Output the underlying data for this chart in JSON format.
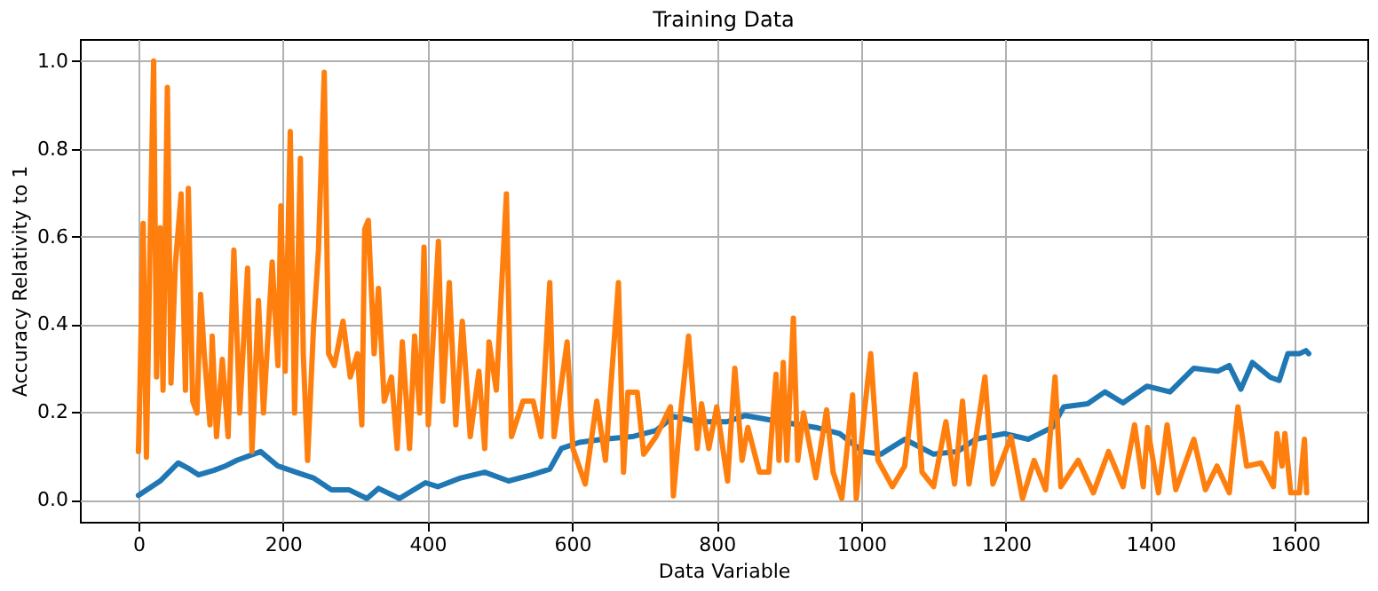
{
  "chart_data": {
    "type": "line",
    "title": "Training Data",
    "xlabel": "Data Variable",
    "ylabel": "Accuracy Relativity to 1",
    "xlim": [
      -81,
      1700
    ],
    "xticks": [
      0,
      200,
      400,
      600,
      800,
      1000,
      1200,
      1400,
      1600
    ],
    "ylim": [
      -0.05,
      1.05
    ],
    "yticks": [
      {
        "value": 0,
        "label": "0.0"
      },
      0.2,
      0.4,
      0.6,
      0.8,
      {
        "value": 1,
        "label": "1.0"
      }
    ],
    "grid": true,
    "legend": false,
    "line_style": "solid",
    "marker": "none",
    "series": [
      {
        "color": "#1f77b4",
        "x": [
          0,
          30,
          55,
          71,
          83,
          104,
          120,
          136,
          169,
          193,
          218,
          242,
          267,
          291,
          316,
          332,
          361,
          397,
          414,
          446,
          479,
          512,
          544,
          569,
          585,
          610,
          642,
          683,
          716,
          740,
          773,
          814,
          839,
          888,
          937,
          970,
          1002,
          1027,
          1060,
          1100,
          1133,
          1158,
          1198,
          1231,
          1264,
          1280,
          1313,
          1337,
          1362,
          1395,
          1427,
          1460,
          1493,
          1509,
          1525,
          1541,
          1566,
          1578,
          1590,
          1606,
          1615,
          1619
        ],
        "values": [
          0.01,
          0.043,
          0.084,
          0.07,
          0.057,
          0.067,
          0.077,
          0.09,
          0.11,
          0.077,
          0.063,
          0.05,
          0.023,
          0.023,
          0.003,
          0.026,
          0.003,
          0.039,
          0.03,
          0.05,
          0.063,
          0.043,
          0.057,
          0.07,
          0.117,
          0.131,
          0.138,
          0.144,
          0.158,
          0.19,
          0.178,
          0.178,
          0.192,
          0.178,
          0.165,
          0.151,
          0.11,
          0.104,
          0.138,
          0.104,
          0.11,
          0.138,
          0.151,
          0.138,
          0.165,
          0.212,
          0.219,
          0.246,
          0.221,
          0.259,
          0.246,
          0.3,
          0.293,
          0.306,
          0.252,
          0.313,
          0.279,
          0.272,
          0.333,
          0.333,
          0.34,
          0.333
        ]
      },
      {
        "color": "#ff7f0e",
        "x": [
          0,
          2,
          6.5,
          11,
          16,
          21,
          25,
          30,
          34,
          40,
          45,
          51,
          59,
          65,
          69,
          75,
          81,
          86,
          91,
          99,
          102,
          108,
          116,
          124,
          132,
          140,
          151,
          157,
          166,
          173,
          185,
          193,
          197,
          203,
          210,
          216,
          224,
          228,
          234,
          242,
          249,
          257,
          263,
          271,
          283,
          293,
          303,
          309,
          313,
          318,
          326,
          332,
          340,
          350,
          358,
          365,
          375,
          382,
          389,
          395,
          401,
          415,
          421,
          430,
          439,
          448,
          459,
          471,
          479,
          485,
          495,
          509,
          516,
          532,
          546,
          557,
          569,
          575,
          593,
          601,
          618,
          634,
          646,
          664,
          671,
          677,
          690,
          699,
          716,
          736,
          740,
          750,
          761,
          773,
          779,
          789,
          800,
          815,
          825,
          835,
          843,
          859,
          872,
          882,
          886,
          892,
          897,
          906,
          912,
          920,
          937,
          952,
          961,
          973,
          988,
          993,
          1004,
          1013,
          1023,
          1043,
          1060,
          1075,
          1084,
          1100,
          1117,
          1129,
          1140,
          1149,
          1171,
          1182,
          1207,
          1223,
          1239,
          1255,
          1268,
          1276,
          1300,
          1321,
          1342,
          1362,
          1378,
          1390,
          1396,
          1411,
          1423,
          1435,
          1460,
          1476,
          1492,
          1509,
          1521,
          1533,
          1553,
          1570,
          1575,
          1582,
          1586,
          1594,
          1606,
          1613,
          1616
        ],
        "values": [
          0.11,
          0.25,
          0.63,
          0.097,
          0.576,
          1.0,
          0.28,
          0.62,
          0.25,
          0.94,
          0.266,
          0.535,
          0.697,
          0.25,
          0.71,
          0.225,
          0.198,
          0.468,
          0.333,
          0.171,
          0.373,
          0.144,
          0.32,
          0.144,
          0.569,
          0.198,
          0.528,
          0.11,
          0.454,
          0.198,
          0.542,
          0.306,
          0.67,
          0.293,
          0.839,
          0.198,
          0.778,
          0.333,
          0.09,
          0.387,
          0.569,
          0.974,
          0.333,
          0.306,
          0.407,
          0.28,
          0.333,
          0.171,
          0.617,
          0.637,
          0.333,
          0.482,
          0.225,
          0.28,
          0.117,
          0.36,
          0.117,
          0.373,
          0.198,
          0.576,
          0.171,
          0.589,
          0.225,
          0.495,
          0.171,
          0.407,
          0.144,
          0.293,
          0.117,
          0.36,
          0.25,
          0.697,
          0.144,
          0.225,
          0.225,
          0.144,
          0.495,
          0.144,
          0.36,
          0.117,
          0.036,
          0.225,
          0.09,
          0.495,
          0.063,
          0.245,
          0.245,
          0.104,
          0.144,
          0.212,
          0.009,
          0.198,
          0.373,
          0.117,
          0.219,
          0.117,
          0.212,
          0.043,
          0.3,
          0.09,
          0.165,
          0.063,
          0.063,
          0.286,
          0.09,
          0.313,
          0.09,
          0.414,
          0.09,
          0.198,
          0.05,
          0.205,
          0.063,
          0.003,
          0.239,
          0.003,
          0.198,
          0.333,
          0.09,
          0.03,
          0.077,
          0.286,
          0.063,
          0.03,
          0.178,
          0.036,
          0.225,
          0.036,
          0.28,
          0.036,
          0.144,
          0.003,
          0.09,
          0.023,
          0.28,
          0.03,
          0.09,
          0.016,
          0.11,
          0.03,
          0.171,
          0.03,
          0.165,
          0.016,
          0.171,
          0.023,
          0.138,
          0.023,
          0.077,
          0.016,
          0.212,
          0.077,
          0.084,
          0.03,
          0.151,
          0.077,
          0.151,
          0.016,
          0.016,
          0.138,
          0.016
        ]
      }
    ]
  }
}
